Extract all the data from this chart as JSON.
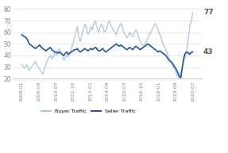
{
  "title": "",
  "buyer_color": "#a8c4e0",
  "seller_color": "#2255a0",
  "background_color": "#ffffff",
  "ylim": [
    20,
    85
  ],
  "yticks": [
    20,
    30,
    40,
    50,
    60,
    70,
    80
  ],
  "end_labels": {
    "buyer": 77,
    "seller": 43
  },
  "legend_labels": [
    "Buyer Traffic",
    "Seller Traffic"
  ],
  "xtick_labels": [
    "2008-01",
    "2009-04",
    "2010-07",
    "2011-10",
    "2013-01",
    "2014-04",
    "2015-07",
    "2016-10",
    "2018-01",
    "2019-04",
    "2020-07"
  ],
  "buyer_data": [
    32,
    30,
    29,
    32,
    30,
    27,
    29,
    31,
    33,
    35,
    32,
    30,
    28,
    26,
    24,
    28,
    32,
    36,
    38,
    40,
    37,
    39,
    43,
    40,
    44,
    46,
    43,
    40,
    36,
    38,
    41,
    39,
    43,
    45,
    50,
    55,
    60,
    65,
    55,
    52,
    58,
    62,
    67,
    64,
    58,
    60,
    65,
    62,
    68,
    70,
    65,
    60,
    63,
    67,
    65,
    60,
    62,
    65,
    70,
    68,
    64,
    62,
    60,
    58,
    62,
    65,
    68,
    65,
    60,
    58,
    55,
    57,
    60,
    58,
    56,
    60,
    62,
    60,
    55,
    52,
    50,
    48,
    50,
    52,
    55,
    58,
    60,
    63,
    65,
    68,
    65,
    62,
    58,
    55,
    50,
    48,
    45,
    42,
    38,
    35,
    33,
    30,
    28,
    25,
    22,
    20,
    25,
    30,
    35,
    40,
    45,
    55,
    65,
    70,
    77
  ],
  "seller_data": [
    58,
    57,
    56,
    55,
    53,
    50,
    49,
    48,
    47,
    46,
    47,
    48,
    49,
    47,
    46,
    45,
    44,
    45,
    46,
    47,
    45,
    44,
    43,
    43,
    42,
    43,
    42,
    41,
    40,
    42,
    43,
    41,
    42,
    43,
    44,
    45,
    45,
    46,
    44,
    43,
    44,
    45,
    46,
    45,
    44,
    45,
    46,
    45,
    46,
    47,
    46,
    44,
    44,
    45,
    46,
    44,
    43,
    44,
    45,
    46,
    47,
    48,
    49,
    50,
    49,
    48,
    49,
    48,
    47,
    46,
    45,
    46,
    47,
    46,
    45,
    47,
    48,
    47,
    46,
    45,
    46,
    47,
    48,
    49,
    50,
    49,
    48,
    47,
    46,
    45,
    44,
    43,
    44,
    43,
    42,
    41,
    40,
    38,
    36,
    35,
    34,
    32,
    30,
    28,
    25,
    22,
    21,
    30,
    38,
    42,
    43,
    42,
    41,
    43,
    43
  ]
}
